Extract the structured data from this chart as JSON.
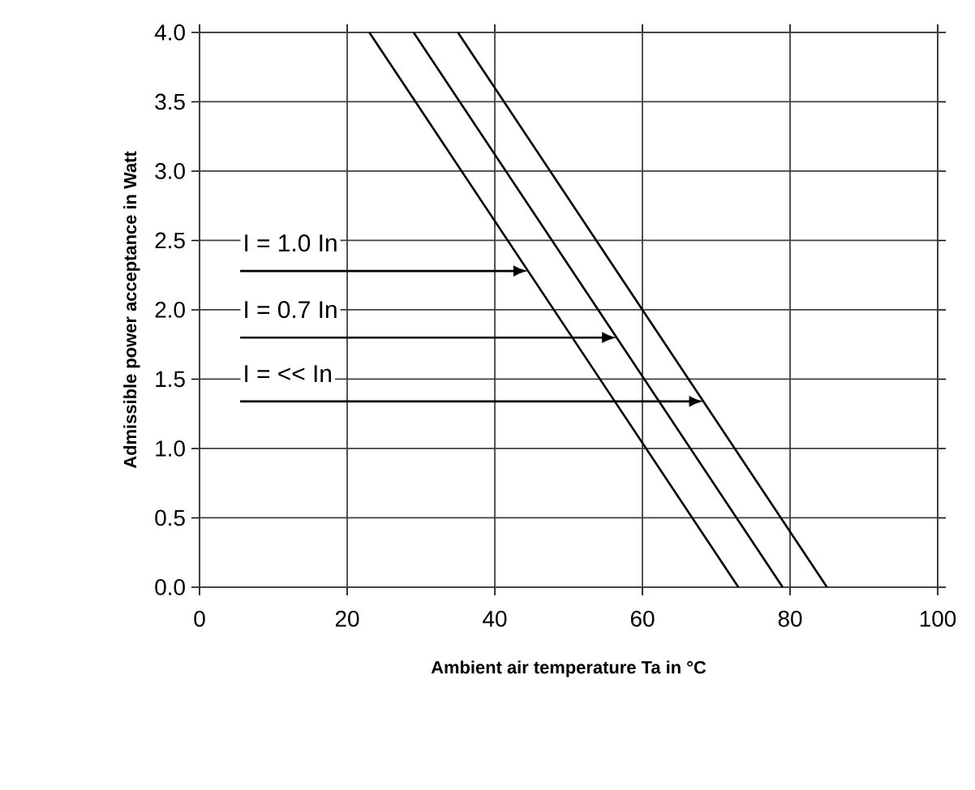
{
  "chart_data": {
    "type": "line",
    "xlabel": "Ambient air temperature Ta in °C",
    "ylabel": "Admissible power acceptance in Watt",
    "series": [
      {
        "color": "#000000",
        "x": [
          23,
          73
        ],
        "values": [
          4.0,
          0.0
        ]
      },
      {
        "color": "#000000",
        "x": [
          29,
          79
        ],
        "values": [
          4.0,
          0.0
        ]
      },
      {
        "color": "#000000",
        "x": [
          35,
          85
        ],
        "values": [
          4.0,
          0.0
        ]
      }
    ],
    "annotations": [
      {
        "text": "I = 1.0 In",
        "x": 44.5,
        "y": 2.28
      },
      {
        "text": "I = 0.7 In",
        "x": 56.5,
        "y": 1.8
      },
      {
        "text": "I = << In",
        "x": 68.3,
        "y": 1.34
      }
    ],
    "xlim": [
      0,
      100
    ],
    "xticks": [
      0,
      20,
      40,
      60,
      80,
      100
    ],
    "ylim": [
      0,
      4.0
    ],
    "yticks": [
      {
        "value": 0,
        "label": "0.0"
      },
      {
        "value": 0.5,
        "label": "0.5"
      },
      {
        "value": 1.0,
        "label": "1.0"
      },
      {
        "value": 1.5,
        "label": "1.5"
      },
      {
        "value": 2.0,
        "label": "2.0"
      },
      {
        "value": 2.5,
        "label": "2.5"
      },
      {
        "value": 3.0,
        "label": "3.0"
      },
      {
        "value": 3.5,
        "label": "3.5"
      },
      {
        "value": 4.0,
        "label": "4.0"
      }
    ],
    "grid": true,
    "marker": "none",
    "line_style": "solid"
  }
}
